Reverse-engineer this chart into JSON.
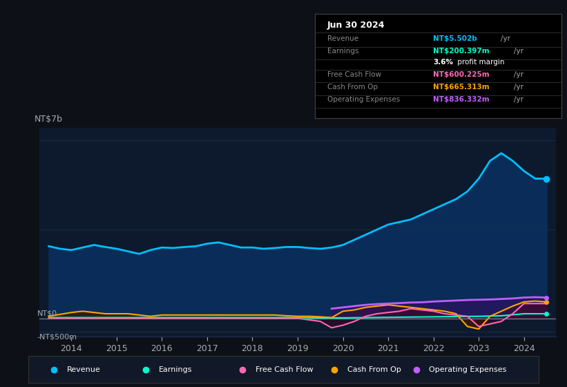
{
  "bg_color": "#0d1117",
  "plot_bg_color": "#0d1a2e",
  "title_date": "Jun 30 2024",
  "info_box_rows": [
    {
      "label": "Revenue",
      "value": "NT$5.502b /yr",
      "value_color": "#00bfff"
    },
    {
      "label": "Earnings",
      "value": "NT$200.397m /yr",
      "value_color": "#00ffcc"
    },
    {
      "label": "",
      "value": "3.6% profit margin",
      "value_color": "#ffffff",
      "bold_part": "3.6%"
    },
    {
      "label": "Free Cash Flow",
      "value": "NT$600.225m /yr",
      "value_color": "#ff69b4"
    },
    {
      "label": "Cash From Op",
      "value": "NT$665.313m /yr",
      "value_color": "#ffa500"
    },
    {
      "label": "Operating Expenses",
      "value": "NT$836.332m /yr",
      "value_color": "#bf5fff"
    }
  ],
  "ylabel_top": "NT$7b",
  "ylabel_zero": "NT$0",
  "ylabel_neg": "-NT$500m",
  "x_ticks": [
    2014,
    2015,
    2016,
    2017,
    2018,
    2019,
    2020,
    2021,
    2022,
    2023,
    2024
  ],
  "ylim": [
    -700000000,
    7500000000
  ],
  "revenue": {
    "x": [
      2013.5,
      2013.75,
      2014.0,
      2014.25,
      2014.5,
      2014.75,
      2015.0,
      2015.25,
      2015.5,
      2015.75,
      2016.0,
      2016.25,
      2016.5,
      2016.75,
      2017.0,
      2017.25,
      2017.5,
      2017.75,
      2018.0,
      2018.25,
      2018.5,
      2018.75,
      2019.0,
      2019.25,
      2019.5,
      2019.75,
      2020.0,
      2020.25,
      2020.5,
      2020.75,
      2021.0,
      2021.25,
      2021.5,
      2021.75,
      2022.0,
      2022.25,
      2022.5,
      2022.75,
      2023.0,
      2023.25,
      2023.5,
      2023.75,
      2024.0,
      2024.25,
      2024.5
    ],
    "y": [
      2850000000.0,
      2750000000.0,
      2700000000.0,
      2800000000.0,
      2900000000.0,
      2820000000.0,
      2750000000.0,
      2650000000.0,
      2550000000.0,
      2700000000.0,
      2800000000.0,
      2780000000.0,
      2820000000.0,
      2850000000.0,
      2950000000.0,
      3000000000.0,
      2900000000.0,
      2800000000.0,
      2800000000.0,
      2750000000.0,
      2780000000.0,
      2820000000.0,
      2820000000.0,
      2780000000.0,
      2750000000.0,
      2800000000.0,
      2900000000.0,
      3100000000.0,
      3300000000.0,
      3500000000.0,
      3700000000.0,
      3800000000.0,
      3900000000.0,
      4100000000.0,
      4300000000.0,
      4500000000.0,
      4700000000.0,
      5000000000.0,
      5500000000.0,
      6200000000.0,
      6500000000.0,
      6200000000.0,
      5800000000.0,
      5500000000.0,
      5500000000.0
    ],
    "color": "#00bfff",
    "lw": 2.0
  },
  "earnings": {
    "x": [
      2013.5,
      2014.0,
      2014.5,
      2015.0,
      2015.5,
      2016.0,
      2016.5,
      2017.0,
      2017.5,
      2018.0,
      2018.5,
      2019.0,
      2019.5,
      2020.0,
      2020.5,
      2021.0,
      2021.5,
      2022.0,
      2022.5,
      2023.0,
      2023.5,
      2024.0,
      2024.5
    ],
    "y": [
      50000000.0,
      50000000.0,
      50000000.0,
      50000000.0,
      50000000.0,
      50000000.0,
      50000000.0,
      50000000.0,
      50000000.0,
      50000000.0,
      50000000.0,
      50000000.0,
      40000000.0,
      40000000.0,
      50000000.0,
      60000000.0,
      70000000.0,
      80000000.0,
      90000000.0,
      100000000.0,
      120000000.0,
      200000000.0,
      200000000.0
    ],
    "color": "#00ffcc",
    "lw": 1.5
  },
  "free_cash_flow": {
    "x": [
      2013.5,
      2014.0,
      2014.5,
      2015.0,
      2015.5,
      2016.0,
      2016.5,
      2017.0,
      2017.5,
      2018.0,
      2018.5,
      2019.0,
      2019.5,
      2019.75,
      2020.0,
      2020.25,
      2020.5,
      2020.75,
      2021.0,
      2021.25,
      2021.5,
      2021.75,
      2022.0,
      2022.25,
      2022.5,
      2022.75,
      2023.0,
      2023.25,
      2023.5,
      2023.75,
      2024.0,
      2024.25,
      2024.5
    ],
    "y": [
      20000000.0,
      30000000.0,
      30000000.0,
      20000000.0,
      20000000.0,
      10000000.0,
      10000000.0,
      10000000.0,
      20000000.0,
      20000000.0,
      10000000.0,
      20000000.0,
      -100000000.0,
      -350000000.0,
      -250000000.0,
      -100000000.0,
      100000000.0,
      200000000.0,
      250000000.0,
      300000000.0,
      400000000.0,
      350000000.0,
      300000000.0,
      200000000.0,
      150000000.0,
      100000000.0,
      -300000000.0,
      -200000000.0,
      -100000000.0,
      200000000.0,
      600000000.0,
      600000000.0,
      600000000.0
    ],
    "color": "#ff69b4",
    "lw": 1.5
  },
  "cash_from_op": {
    "x": [
      2013.5,
      2014.0,
      2014.25,
      2014.5,
      2014.75,
      2015.0,
      2015.25,
      2015.5,
      2015.75,
      2016.0,
      2016.25,
      2016.5,
      2016.75,
      2017.0,
      2017.25,
      2017.5,
      2017.75,
      2018.0,
      2018.25,
      2018.5,
      2018.75,
      2019.0,
      2019.25,
      2019.5,
      2019.75,
      2020.0,
      2020.25,
      2020.5,
      2020.75,
      2021.0,
      2021.25,
      2021.5,
      2021.75,
      2022.0,
      2022.25,
      2022.5,
      2022.75,
      2023.0,
      2023.25,
      2023.5,
      2023.75,
      2024.0,
      2024.25,
      2024.5
    ],
    "y": [
      100000000.0,
      250000000.0,
      300000000.0,
      250000000.0,
      200000000.0,
      200000000.0,
      200000000.0,
      150000000.0,
      100000000.0,
      150000000.0,
      150000000.0,
      150000000.0,
      150000000.0,
      150000000.0,
      150000000.0,
      150000000.0,
      150000000.0,
      150000000.0,
      150000000.0,
      150000000.0,
      120000000.0,
      100000000.0,
      100000000.0,
      80000000.0,
      50000000.0,
      300000000.0,
      350000000.0,
      450000000.0,
      500000000.0,
      550000000.0,
      500000000.0,
      450000000.0,
      400000000.0,
      350000000.0,
      300000000.0,
      200000000.0,
      -300000000.0,
      -400000000.0,
      100000000.0,
      300000000.0,
      500000000.0,
      665000000.0,
      700000000.0,
      665000000.0
    ],
    "color": "#ffa500",
    "lw": 1.5
  },
  "op_expenses": {
    "x": [
      2019.75,
      2020.0,
      2020.25,
      2020.5,
      2020.75,
      2021.0,
      2021.25,
      2021.5,
      2021.75,
      2022.0,
      2022.25,
      2022.5,
      2022.75,
      2023.0,
      2023.25,
      2023.5,
      2023.75,
      2024.0,
      2024.25,
      2024.5
    ],
    "y": [
      400000000.0,
      450000000.0,
      500000000.0,
      550000000.0,
      580000000.0,
      600000000.0,
      620000000.0,
      640000000.0,
      650000000.0,
      680000000.0,
      700000000.0,
      720000000.0,
      740000000.0,
      750000000.0,
      760000000.0,
      780000000.0,
      800000000.0,
      836000000.0,
      850000000.0,
      836000000.0
    ],
    "color": "#bf5fff",
    "lw": 2.0
  },
  "legend": [
    {
      "label": "Revenue",
      "color": "#00bfff"
    },
    {
      "label": "Earnings",
      "color": "#00ffcc"
    },
    {
      "label": "Free Cash Flow",
      "color": "#ff69b4"
    },
    {
      "label": "Cash From Op",
      "color": "#ffa500"
    },
    {
      "label": "Operating Expenses",
      "color": "#bf5fff"
    }
  ],
  "grid_color": "#1e3050",
  "text_color": "#aaaaaa",
  "zero_line_color": "#888888"
}
